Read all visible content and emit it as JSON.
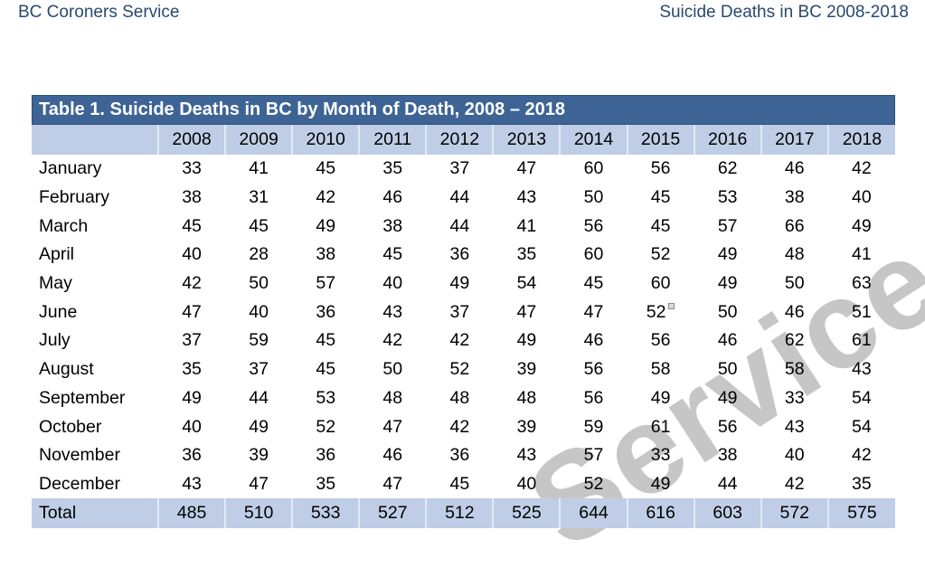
{
  "page_header": {
    "left": "BC Coroners Service",
    "right": "Suicide Deaths in BC 2008-2018"
  },
  "watermark": {
    "text": "Service"
  },
  "colors": {
    "header_bar": "#3d6495",
    "row_accent": "#bfcee6",
    "header_text": "#29496e",
    "watermark": "#c6c6c6"
  },
  "table": {
    "title": "Table 1. Suicide Deaths in BC by Month of Death, 2008 – 2018",
    "years": [
      "2008",
      "2009",
      "2010",
      "2011",
      "2012",
      "2013",
      "2014",
      "2015",
      "2016",
      "2017",
      "2018"
    ],
    "rows": [
      {
        "month": "January",
        "values": [
          33,
          41,
          45,
          35,
          37,
          47,
          60,
          56,
          62,
          46,
          42
        ]
      },
      {
        "month": "February",
        "values": [
          38,
          31,
          42,
          46,
          44,
          43,
          50,
          45,
          53,
          38,
          40
        ]
      },
      {
        "month": "March",
        "values": [
          45,
          45,
          49,
          38,
          44,
          41,
          56,
          45,
          57,
          66,
          49
        ]
      },
      {
        "month": "April",
        "values": [
          40,
          28,
          38,
          45,
          36,
          35,
          60,
          52,
          49,
          48,
          41
        ]
      },
      {
        "month": "May",
        "values": [
          42,
          50,
          57,
          40,
          49,
          54,
          45,
          60,
          49,
          50,
          63
        ]
      },
      {
        "month": "June",
        "values": [
          47,
          40,
          36,
          43,
          37,
          47,
          47,
          52,
          50,
          46,
          51
        ]
      },
      {
        "month": "July",
        "values": [
          37,
          59,
          45,
          42,
          42,
          49,
          46,
          56,
          46,
          62,
          61
        ]
      },
      {
        "month": "August",
        "values": [
          35,
          37,
          45,
          50,
          52,
          39,
          56,
          58,
          50,
          58,
          43
        ]
      },
      {
        "month": "September",
        "values": [
          49,
          44,
          53,
          48,
          48,
          48,
          56,
          49,
          49,
          33,
          54
        ]
      },
      {
        "month": "October",
        "values": [
          40,
          49,
          52,
          47,
          42,
          39,
          59,
          61,
          56,
          43,
          54
        ]
      },
      {
        "month": "November",
        "values": [
          36,
          39,
          36,
          46,
          36,
          43,
          57,
          33,
          38,
          40,
          42
        ]
      },
      {
        "month": "December",
        "values": [
          43,
          47,
          35,
          47,
          45,
          40,
          52,
          49,
          44,
          42,
          35
        ]
      }
    ],
    "total": {
      "label": "Total",
      "values": [
        485,
        510,
        533,
        527,
        512,
        525,
        644,
        616,
        603,
        572,
        575
      ]
    },
    "footnote_marker": {
      "month": "June",
      "year": "2015"
    }
  },
  "chart_data": {
    "type": "table",
    "title": "Table 1. Suicide Deaths in BC by Month of Death, 2008 – 2018",
    "columns": [
      "2008",
      "2009",
      "2010",
      "2011",
      "2012",
      "2013",
      "2014",
      "2015",
      "2016",
      "2017",
      "2018"
    ],
    "row_labels": [
      "January",
      "February",
      "March",
      "April",
      "May",
      "June",
      "July",
      "August",
      "September",
      "October",
      "November",
      "December",
      "Total"
    ],
    "values": [
      [
        33,
        41,
        45,
        35,
        37,
        47,
        60,
        56,
        62,
        46,
        42
      ],
      [
        38,
        31,
        42,
        46,
        44,
        43,
        50,
        45,
        53,
        38,
        40
      ],
      [
        45,
        45,
        49,
        38,
        44,
        41,
        56,
        45,
        57,
        66,
        49
      ],
      [
        40,
        28,
        38,
        45,
        36,
        35,
        60,
        52,
        49,
        48,
        41
      ],
      [
        42,
        50,
        57,
        40,
        49,
        54,
        45,
        60,
        49,
        50,
        63
      ],
      [
        47,
        40,
        36,
        43,
        37,
        47,
        47,
        52,
        50,
        46,
        51
      ],
      [
        37,
        59,
        45,
        42,
        42,
        49,
        46,
        56,
        46,
        62,
        61
      ],
      [
        35,
        37,
        45,
        50,
        52,
        39,
        56,
        58,
        50,
        58,
        43
      ],
      [
        49,
        44,
        53,
        48,
        48,
        48,
        56,
        49,
        49,
        33,
        54
      ],
      [
        40,
        49,
        52,
        47,
        42,
        39,
        59,
        61,
        56,
        43,
        54
      ],
      [
        36,
        39,
        36,
        46,
        36,
        43,
        57,
        33,
        38,
        40,
        42
      ],
      [
        43,
        47,
        35,
        47,
        45,
        40,
        52,
        49,
        44,
        42,
        35
      ],
      [
        485,
        510,
        533,
        527,
        512,
        525,
        644,
        616,
        603,
        572,
        575
      ]
    ]
  }
}
